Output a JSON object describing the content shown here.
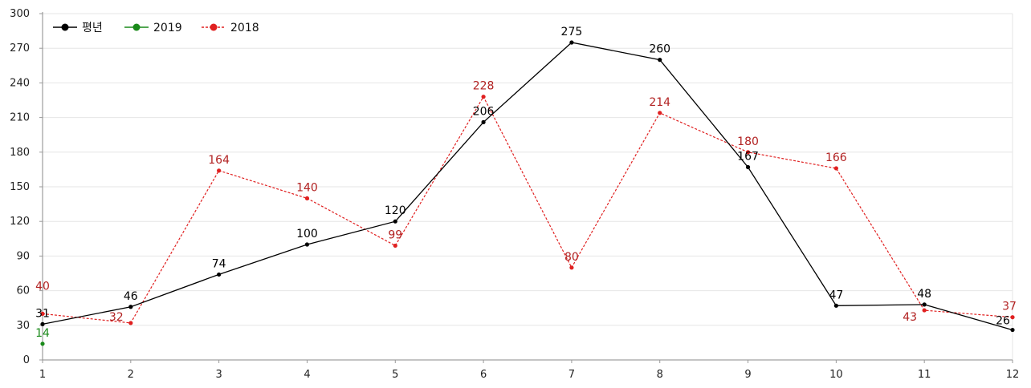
{
  "chart_data": {
    "type": "line",
    "x": [
      1,
      2,
      3,
      4,
      5,
      6,
      7,
      8,
      9,
      10,
      11,
      12
    ],
    "ylim": [
      0,
      300
    ],
    "yticks": [
      0,
      30,
      60,
      90,
      120,
      150,
      180,
      210,
      240,
      270,
      300
    ],
    "grid": true,
    "legend_position": "top-left",
    "series": [
      {
        "name": "평년",
        "color": "#000000",
        "dashed": false,
        "values": [
          31,
          46,
          74,
          100,
          120,
          206,
          275,
          260,
          167,
          47,
          48,
          26
        ]
      },
      {
        "name": "2019",
        "color": "#1a8a1a",
        "dashed": false,
        "values": [
          14,
          null,
          null,
          null,
          null,
          null,
          null,
          null,
          null,
          null,
          null,
          null
        ]
      },
      {
        "name": "2018",
        "color": "#e02020",
        "label_color": "#b22222",
        "dashed": true,
        "values": [
          40,
          32,
          164,
          140,
          99,
          228,
          80,
          214,
          180,
          166,
          43,
          37
        ]
      }
    ]
  }
}
